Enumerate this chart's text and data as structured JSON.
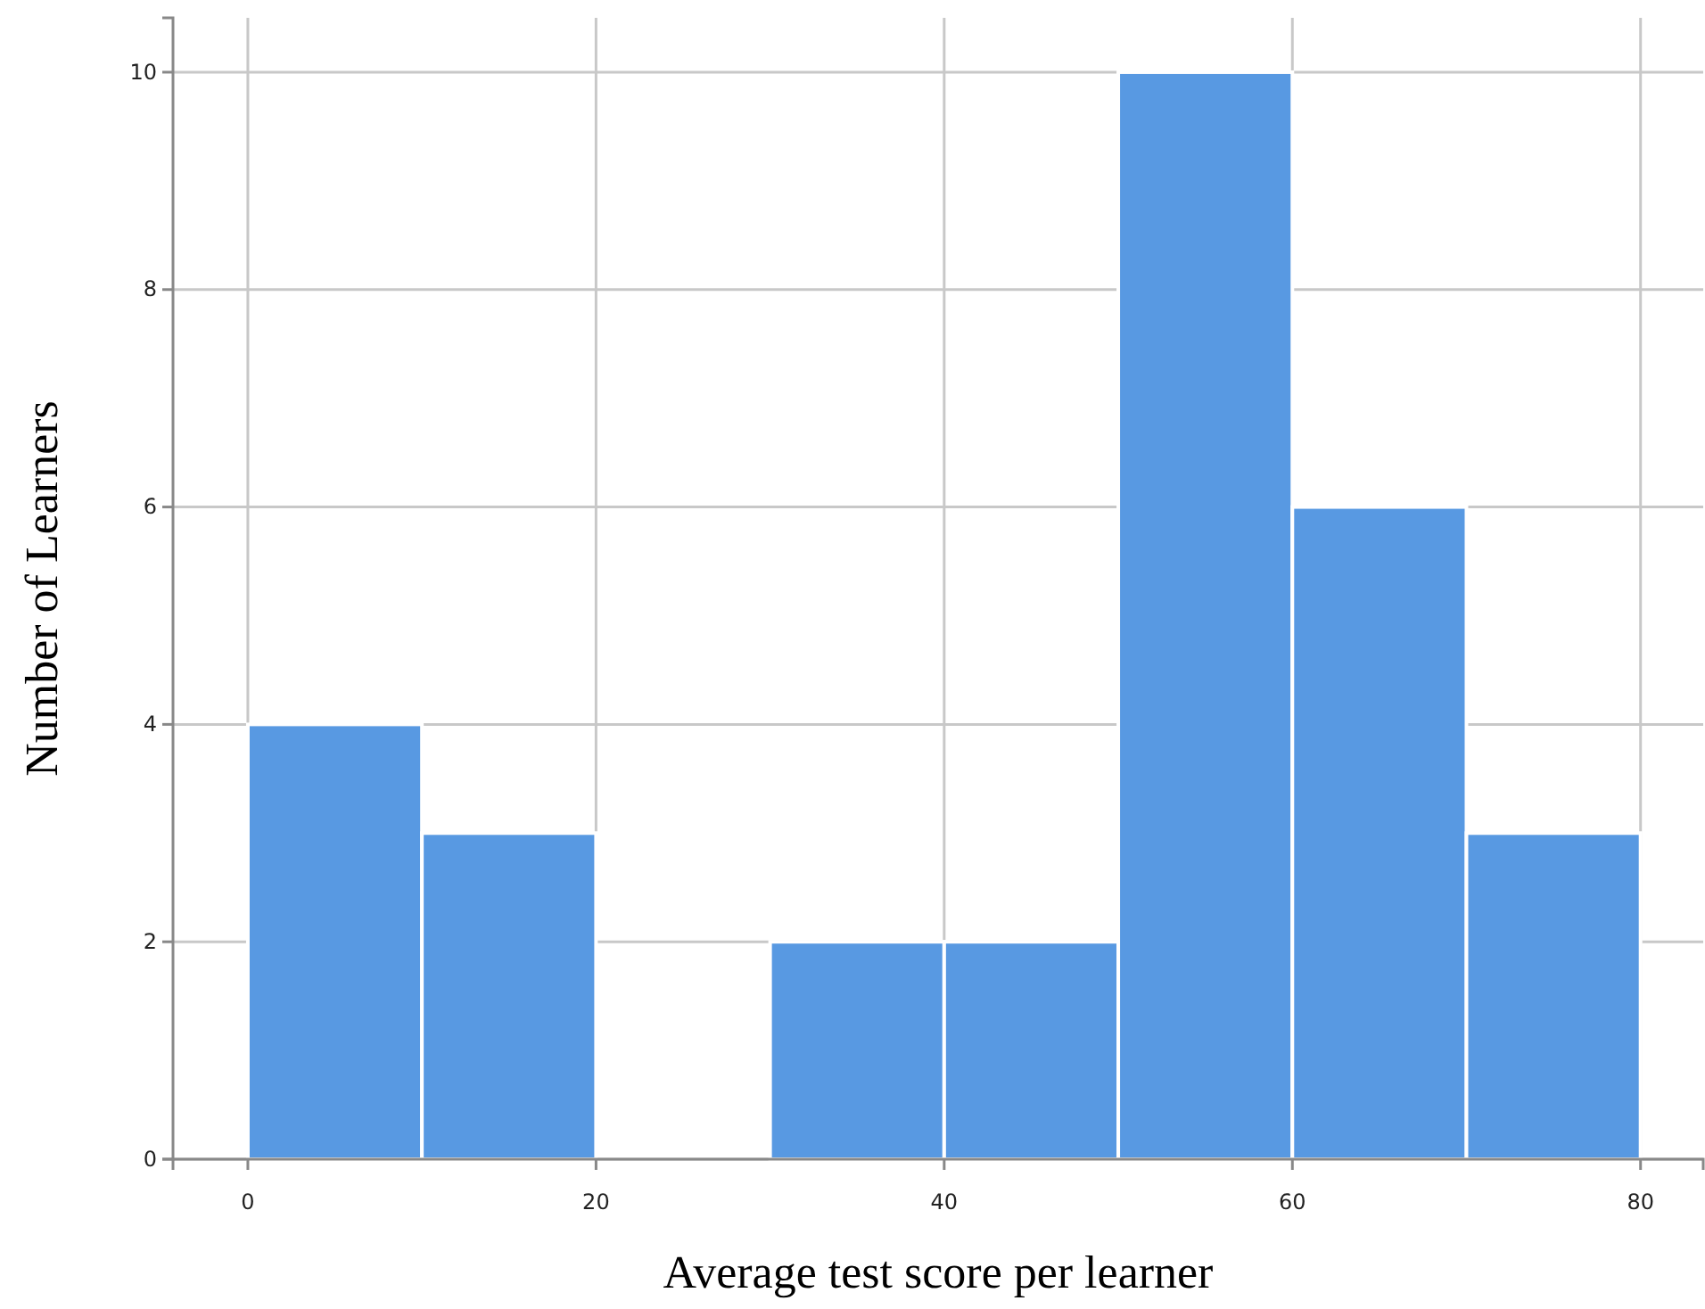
{
  "chart_data": {
    "type": "histogram",
    "xlabel": "Average test score per learner",
    "ylabel": "Number of Learners",
    "bins": [
      0,
      10,
      20,
      30,
      40,
      50,
      60,
      70,
      80
    ],
    "values": [
      4,
      3,
      0,
      2,
      2,
      10,
      6,
      3
    ],
    "color": "#5899e2",
    "xlim": [
      -4.3,
      83.6
    ],
    "xticks": [
      0,
      20,
      40,
      60,
      80
    ],
    "ylim": [
      0,
      10.5
    ],
    "yticks": [
      0,
      2,
      4,
      6,
      8,
      10
    ],
    "grid": true
  }
}
